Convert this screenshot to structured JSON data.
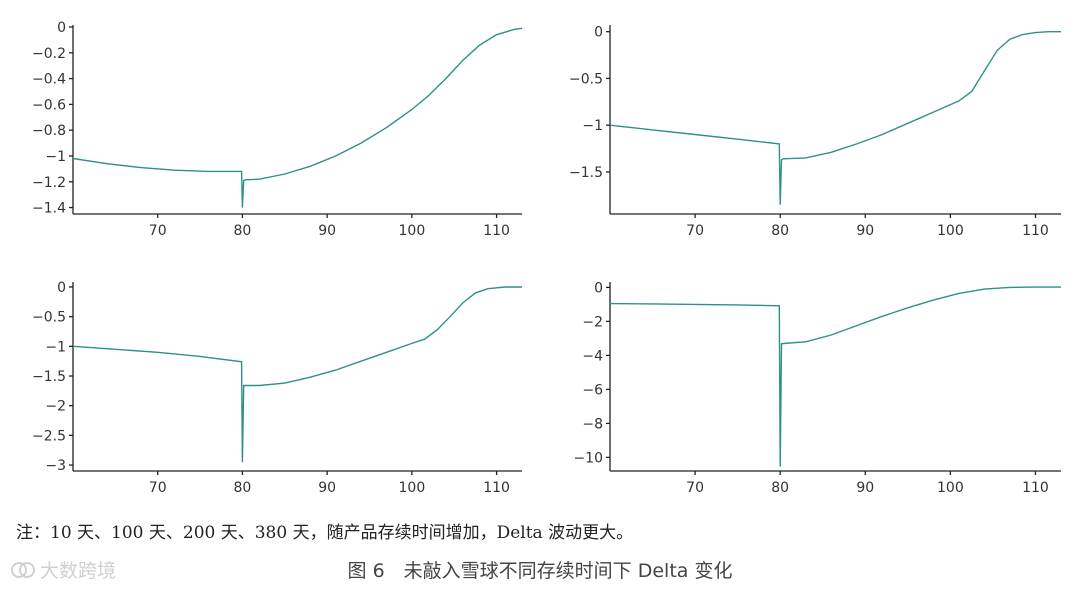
{
  "note": "注：10 天、100 天、200 天、380 天，随产品存续时间增加，Delta 波动更大。",
  "caption": "图 6　未敲入雪球不同存续时间下 Delta 变化",
  "watermark": "大数跨境",
  "colors": {
    "line": "#2e9188",
    "axis": "#222222",
    "text": "#333333"
  },
  "chart_data": [
    {
      "type": "line",
      "xlim": [
        60,
        113
      ],
      "ylim": [
        -1.45,
        0
      ],
      "xticks": [
        70,
        80,
        90,
        100,
        110
      ],
      "yticks": [
        0,
        -0.2,
        -0.4,
        -0.6,
        -0.8,
        -1,
        -1.2,
        -1.4
      ],
      "ytick_labels": [
        "0",
        "−0.2",
        "−0.4",
        "−0.6",
        "−0.8",
        "−1",
        "−1.2",
        "−1.4"
      ],
      "series": [
        {
          "x": [
            60,
            64,
            68,
            72,
            76,
            79.9,
            80,
            80.15,
            80.35,
            82,
            85,
            88,
            91,
            94,
            97,
            100,
            102,
            104,
            106,
            108,
            110,
            112,
            113
          ],
          "y": [
            -1.02,
            -1.06,
            -1.09,
            -1.11,
            -1.12,
            -1.12,
            -1.4,
            -1.19,
            -1.185,
            -1.18,
            -1.14,
            -1.08,
            -1.0,
            -0.9,
            -0.78,
            -0.64,
            -0.53,
            -0.4,
            -0.26,
            -0.14,
            -0.06,
            -0.02,
            -0.01
          ]
        }
      ]
    },
    {
      "type": "line",
      "xlim": [
        60,
        113
      ],
      "ylim": [
        -1.95,
        0.05
      ],
      "xticks": [
        70,
        80,
        90,
        100,
        110
      ],
      "yticks": [
        0,
        -0.5,
        -1,
        -1.5
      ],
      "ytick_labels": [
        "0",
        "−0.5",
        "−1",
        "−1.5"
      ],
      "series": [
        {
          "x": [
            60,
            65,
            70,
            75,
            79.9,
            80,
            80.15,
            80.35,
            83,
            86,
            89,
            92,
            95,
            98,
            101,
            102.5,
            104,
            105.5,
            107,
            108.5,
            110,
            111.5,
            113
          ],
          "y": [
            -1.0,
            -1.05,
            -1.1,
            -1.15,
            -1.2,
            -1.85,
            -1.37,
            -1.36,
            -1.35,
            -1.29,
            -1.2,
            -1.1,
            -0.98,
            -0.86,
            -0.74,
            -0.64,
            -0.42,
            -0.2,
            -0.08,
            -0.03,
            -0.01,
            0.0,
            0.0
          ]
        }
      ]
    },
    {
      "type": "line",
      "xlim": [
        60,
        113
      ],
      "ylim": [
        -3.1,
        0.05
      ],
      "xticks": [
        70,
        80,
        90,
        100,
        110
      ],
      "yticks": [
        0,
        -0.5,
        -1,
        -1.5,
        -2,
        -2.5,
        -3
      ],
      "ytick_labels": [
        "0",
        "−0.5",
        "−1",
        "−1.5",
        "−2",
        "−2.5",
        "−3"
      ],
      "series": [
        {
          "x": [
            60,
            65,
            70,
            75,
            79.9,
            80,
            80.15,
            80.35,
            82,
            85,
            88,
            91,
            94,
            97,
            100,
            101.5,
            103,
            104.5,
            106,
            107.5,
            109,
            111,
            113
          ],
          "y": [
            -1.0,
            -1.05,
            -1.1,
            -1.17,
            -1.26,
            -2.95,
            -1.66,
            -1.66,
            -1.66,
            -1.62,
            -1.52,
            -1.4,
            -1.25,
            -1.1,
            -0.95,
            -0.88,
            -0.72,
            -0.5,
            -0.27,
            -0.1,
            -0.03,
            0.0,
            0.0
          ]
        }
      ]
    },
    {
      "type": "line",
      "xlim": [
        60,
        113
      ],
      "ylim": [
        -10.8,
        0.2
      ],
      "xticks": [
        70,
        80,
        90,
        100,
        110
      ],
      "yticks": [
        0,
        -2,
        -4,
        -6,
        -8,
        -10
      ],
      "ytick_labels": [
        "0",
        "−2",
        "−4",
        "−6",
        "−8",
        "−10"
      ],
      "series": [
        {
          "x": [
            60,
            65,
            70,
            75,
            79.9,
            80,
            80.15,
            80.35,
            83,
            86,
            89,
            92,
            95,
            98,
            101,
            104,
            107,
            110,
            113
          ],
          "y": [
            -0.95,
            -0.97,
            -1.0,
            -1.03,
            -1.08,
            -10.55,
            -3.32,
            -3.3,
            -3.2,
            -2.8,
            -2.25,
            -1.7,
            -1.2,
            -0.75,
            -0.35,
            -0.1,
            0.0,
            0.02,
            0.02
          ]
        }
      ]
    }
  ]
}
